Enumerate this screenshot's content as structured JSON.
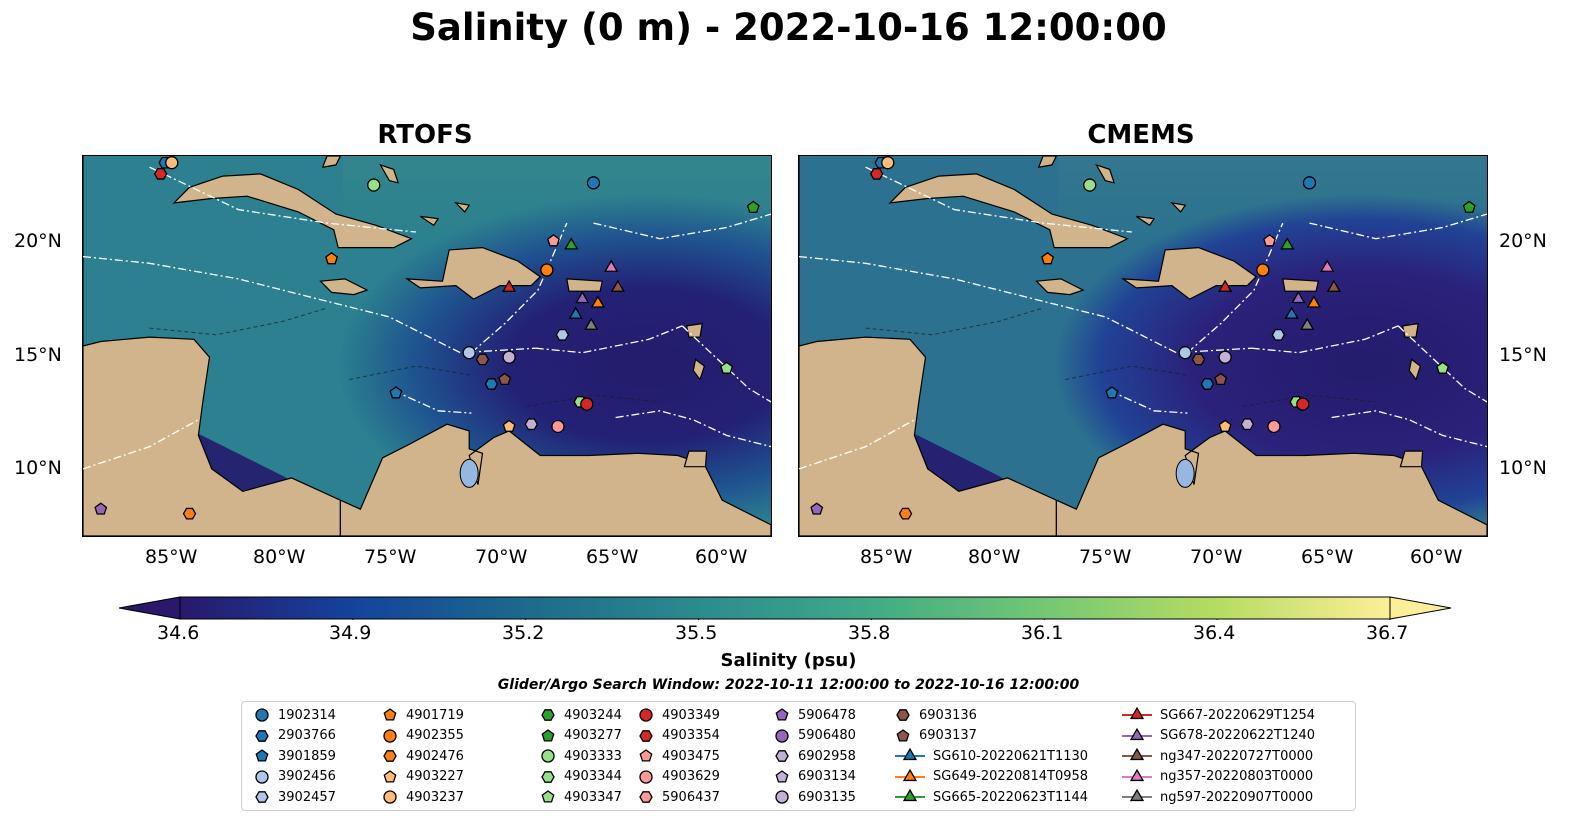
{
  "title": "Salinity (0 m) - 2022-10-16 12:00:00",
  "panels": [
    {
      "title": "RTOFS"
    },
    {
      "title": "CMEMS"
    }
  ],
  "lat_labels": [
    "20°N",
    "15°N",
    "10°N"
  ],
  "lon_labels": [
    "85°W",
    "80°W",
    "75°W",
    "70°W",
    "65°W",
    "60°W"
  ],
  "map_extent": {
    "lon": [
      -89,
      -58
    ],
    "lat": [
      7,
      24
    ]
  },
  "colorbar": {
    "label": "Salinity (psu)",
    "ticks": [
      "34.6",
      "34.9",
      "35.2",
      "35.5",
      "35.8",
      "36.1",
      "36.4",
      "36.7"
    ],
    "range": [
      34.6,
      36.7
    ],
    "extend": "both",
    "colormap": "haline",
    "colors": [
      "#2a186c",
      "#14439c",
      "#1d6a8b",
      "#2c8b8e",
      "#40ab87",
      "#74c774",
      "#b6dc62",
      "#fdee99"
    ]
  },
  "search_window": "Glider/Argo Search Window: 2022-10-11 12:00:00 to 2022-10-16 12:00:00",
  "legend": [
    {
      "label": "1902314",
      "marker": "circle",
      "color": "#1f77b4"
    },
    {
      "label": "2903766",
      "marker": "hexagon",
      "color": "#1f77b4"
    },
    {
      "label": "3901859",
      "marker": "pentagon",
      "color": "#1f77b4"
    },
    {
      "label": "3902456",
      "marker": "circle",
      "color": "#aec7e8"
    },
    {
      "label": "3902457",
      "marker": "hexagon",
      "color": "#aec7e8"
    },
    {
      "label": "4901719",
      "marker": "pentagon",
      "color": "#ff7f0e"
    },
    {
      "label": "4902355",
      "marker": "circle",
      "color": "#ff7f0e"
    },
    {
      "label": "4902476",
      "marker": "hexagon",
      "color": "#ff7f0e"
    },
    {
      "label": "4903227",
      "marker": "pentagon",
      "color": "#ffbb78"
    },
    {
      "label": "4903237",
      "marker": "circle",
      "color": "#ffbb78"
    },
    {
      "label": "4903244",
      "marker": "hexagon",
      "color": "#2ca02c"
    },
    {
      "label": "4903277",
      "marker": "pentagon",
      "color": "#2ca02c"
    },
    {
      "label": "4903333",
      "marker": "circle",
      "color": "#98df8a"
    },
    {
      "label": "4903344",
      "marker": "hexagon",
      "color": "#98df8a"
    },
    {
      "label": "4903347",
      "marker": "pentagon",
      "color": "#98df8a"
    },
    {
      "label": "4903349",
      "marker": "circle",
      "color": "#d62728"
    },
    {
      "label": "4903354",
      "marker": "hexagon",
      "color": "#d62728"
    },
    {
      "label": "4903475",
      "marker": "pentagon",
      "color": "#ff9896"
    },
    {
      "label": "4903629",
      "marker": "circle",
      "color": "#ff9896"
    },
    {
      "label": "5906437",
      "marker": "hexagon",
      "color": "#ff9896"
    },
    {
      "label": "5906478",
      "marker": "pentagon",
      "color": "#9467bd"
    },
    {
      "label": "5906480",
      "marker": "circle",
      "color": "#9467bd"
    },
    {
      "label": "6902958",
      "marker": "hexagon",
      "color": "#c5b0d5"
    },
    {
      "label": "6903134",
      "marker": "pentagon",
      "color": "#c5b0d5"
    },
    {
      "label": "6903135",
      "marker": "circle",
      "color": "#c5b0d5"
    },
    {
      "label": "6903136",
      "marker": "hexagon",
      "color": "#8c564b"
    },
    {
      "label": "6903137",
      "marker": "pentagon",
      "color": "#8c564b"
    },
    {
      "label": "SG610-20220621T1130",
      "marker": "triangle",
      "color": "#1f77b4"
    },
    {
      "label": "SG649-20220814T0958",
      "marker": "triangle",
      "color": "#ff7f0e"
    },
    {
      "label": "SG665-20220623T1144",
      "marker": "triangle",
      "color": "#2ca02c"
    },
    {
      "label": "SG667-20220629T1254",
      "marker": "triangle",
      "color": "#d62728"
    },
    {
      "label": "SG678-20220622T1240",
      "marker": "triangle",
      "color": "#9467bd"
    },
    {
      "label": "ng347-20220727T0000",
      "marker": "triangle",
      "color": "#8c564b"
    },
    {
      "label": "ng357-20220803T0000",
      "marker": "triangle",
      "color": "#e377c2"
    },
    {
      "label": "ng597-20220907T0000",
      "marker": "triangle",
      "color": "#7f7f7f"
    }
  ],
  "observations": [
    {
      "label": "1902314",
      "lon": -66.0,
      "lat": 22.8
    },
    {
      "label": "2903766",
      "lon": -85.3,
      "lat": 23.7
    },
    {
      "label": "4903277",
      "lon": -58.8,
      "lat": 21.7
    },
    {
      "label": "4903333",
      "lon": -75.9,
      "lat": 22.7
    },
    {
      "label": "4903354",
      "lon": -85.5,
      "lat": 23.2
    },
    {
      "label": "4903237",
      "lon": -85.0,
      "lat": 23.7
    },
    {
      "label": "4901719",
      "lon": -77.8,
      "lat": 19.4
    },
    {
      "label": "4902355",
      "lon": -68.1,
      "lat": 18.9
    },
    {
      "label": "4903475",
      "lon": -67.8,
      "lat": 20.2
    },
    {
      "label": "SG665-20220623T1144",
      "lon": -67.0,
      "lat": 20.0
    },
    {
      "label": "ng357-20220803T0000",
      "lon": -65.2,
      "lat": 19.0
    },
    {
      "label": "SG667-20220629T1254",
      "lon": -69.8,
      "lat": 18.1
    },
    {
      "label": "ng347-20220727T0000",
      "lon": -64.9,
      "lat": 18.1
    },
    {
      "label": "SG678-20220622T1240",
      "lon": -66.5,
      "lat": 17.6
    },
    {
      "label": "SG649-20220814T0958",
      "lon": -65.8,
      "lat": 17.4
    },
    {
      "label": "SG610-20220621T1130",
      "lon": -66.8,
      "lat": 16.9
    },
    {
      "label": "ng597-20220907T0000",
      "lon": -66.1,
      "lat": 16.4
    },
    {
      "label": "3902457",
      "lon": -67.4,
      "lat": 16.0
    },
    {
      "label": "3902456",
      "lon": -71.6,
      "lat": 15.2
    },
    {
      "label": "6903136",
      "lon": -71.0,
      "lat": 14.9
    },
    {
      "label": "6903135",
      "lon": -69.8,
      "lat": 15.0
    },
    {
      "label": "2903766",
      "lon": -70.6,
      "lat": 13.8
    },
    {
      "label": "6903137",
      "lon": -70.0,
      "lat": 14.0
    },
    {
      "label": "4903347",
      "lon": -60.0,
      "lat": 14.5
    },
    {
      "label": "3901859",
      "lon": -74.9,
      "lat": 13.4
    },
    {
      "label": "4903344",
      "lon": -66.6,
      "lat": 13.0
    },
    {
      "label": "4903349",
      "lon": -66.3,
      "lat": 12.9
    },
    {
      "label": "4903227",
      "lon": -69.8,
      "lat": 11.9
    },
    {
      "label": "6902958",
      "lon": -68.8,
      "lat": 12.0
    },
    {
      "label": "4903629",
      "lon": -67.6,
      "lat": 11.9
    },
    {
      "label": "5906478",
      "lon": -88.2,
      "lat": 8.2
    },
    {
      "label": "4902476",
      "lon": -84.2,
      "lat": 8.0
    }
  ]
}
